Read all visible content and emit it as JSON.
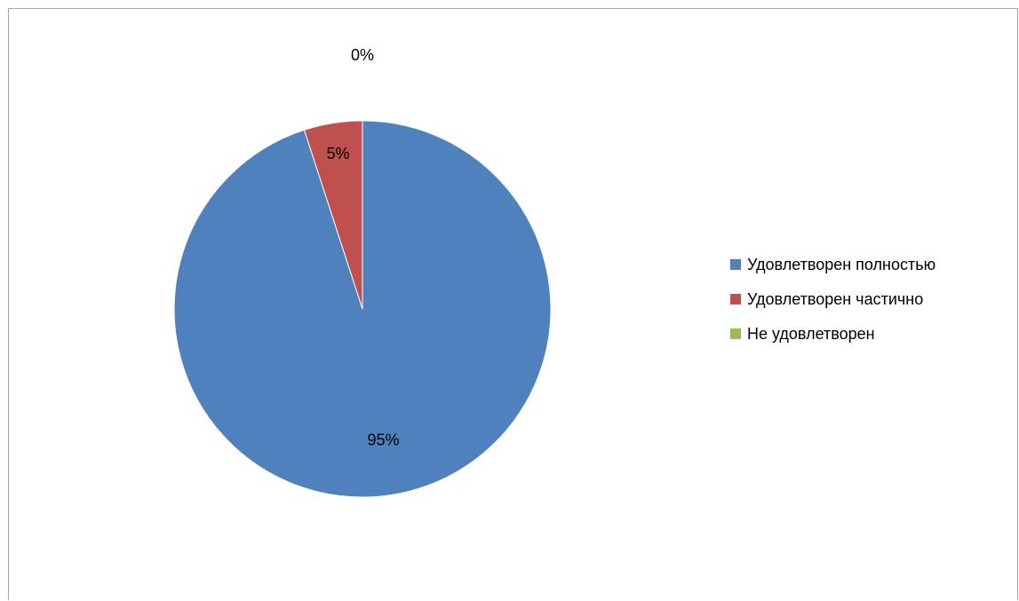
{
  "chart_data": {
    "type": "pie",
    "title": "",
    "categories": [
      "Удовлетворен полностью",
      "Удовлетворен частично",
      "Не удовлетворен"
    ],
    "values": [
      95,
      5,
      0
    ],
    "labels": [
      "95%",
      "5%",
      "0%"
    ],
    "colors": [
      "#4f81bd",
      "#c0504d",
      "#9bbb59"
    ],
    "legend_position": "right",
    "start_angle": "12 o'clock, clockwise"
  }
}
